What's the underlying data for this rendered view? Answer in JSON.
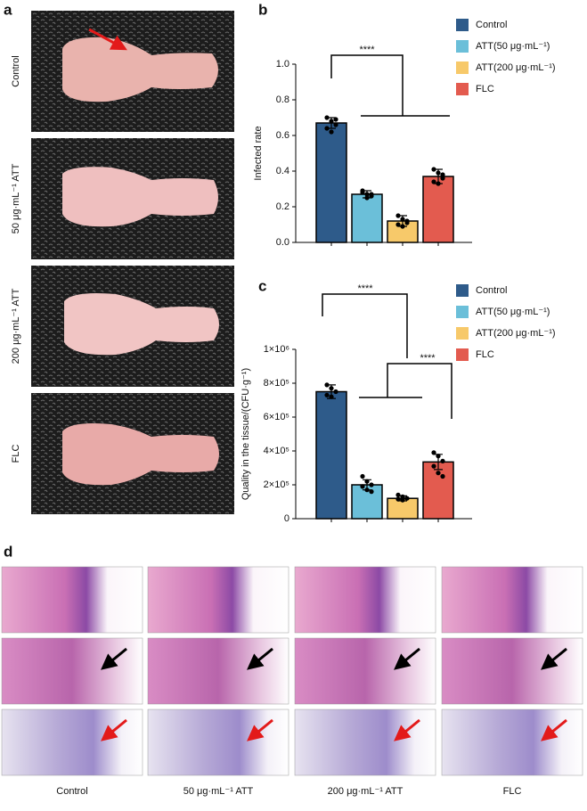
{
  "panel_labels": [
    "a",
    "b",
    "c",
    "d"
  ],
  "photos": {
    "labels": [
      "Control",
      "50 μg·mL⁻¹ ATT",
      "200 μg·mL⁻¹ ATT",
      "FLC"
    ]
  },
  "chart_data": [
    {
      "type": "bar",
      "y_label": "Infected rate",
      "categories": [
        "Control",
        "ATT(50 μg·mL⁻¹)",
        "ATT(200 μg·mL⁻¹)",
        "FLC"
      ],
      "colors": [
        "#2e5b8a",
        "#6bbfd9",
        "#f7c96a",
        "#e35b4f"
      ],
      "values": [
        0.67,
        0.27,
        0.12,
        0.37
      ],
      "errors": [
        0.03,
        0.02,
        0.03,
        0.04
      ],
      "points": [
        [
          0.7,
          0.68,
          0.66,
          0.64,
          0.62,
          0.69
        ],
        [
          0.29,
          0.27,
          0.26,
          0.28,
          0.25,
          0.27
        ],
        [
          0.15,
          0.13,
          0.11,
          0.1,
          0.09,
          0.12
        ],
        [
          0.41,
          0.39,
          0.36,
          0.34,
          0.33,
          0.38
        ]
      ],
      "ylim": [
        0,
        1.0
      ],
      "yticks": [
        {
          "value": 0,
          "label": "0.0"
        },
        0.2,
        0.4,
        0.6,
        0.8,
        {
          "value": 1.0,
          "label": "1.0"
        }
      ],
      "annotations": [
        "****"
      ]
    },
    {
      "type": "bar",
      "y_label": "Quality in the tissue/(CFU·g⁻¹)",
      "categories": [
        "Control",
        "ATT(50 μg·mL⁻¹)",
        "ATT(200 μg·mL⁻¹)",
        "FLC"
      ],
      "colors": [
        "#2e5b8a",
        "#6bbfd9",
        "#f7c96a",
        "#e35b4f"
      ],
      "values": [
        750000,
        200000,
        120000,
        335000
      ],
      "errors": [
        40000,
        30000,
        15000,
        45000
      ],
      "points": [
        [
          790000,
          770000,
          750000,
          730000,
          720000
        ],
        [
          250000,
          220000,
          200000,
          190000,
          170000,
          160000
        ],
        [
          140000,
          130000,
          120000,
          115000,
          110000
        ],
        [
          390000,
          370000,
          340000,
          310000,
          270000,
          250000
        ]
      ],
      "ylim": [
        0,
        1000000
      ],
      "yticks": [
        0,
        {
          "value": 200000,
          "label": "2×10⁵"
        },
        {
          "value": 400000,
          "label": "4×10⁵"
        },
        {
          "value": 600000,
          "label": "6×10⁵"
        },
        {
          "value": 800000,
          "label": "8×10⁵"
        },
        {
          "value": 1000000,
          "label": "1×10⁶"
        }
      ],
      "annotations": [
        "****",
        "****"
      ]
    }
  ],
  "histology": {
    "labels": [
      "Control",
      "50 μg·mL⁻¹ ATT",
      "200 μg·mL⁻¹ ATT",
      "FLC"
    ]
  }
}
